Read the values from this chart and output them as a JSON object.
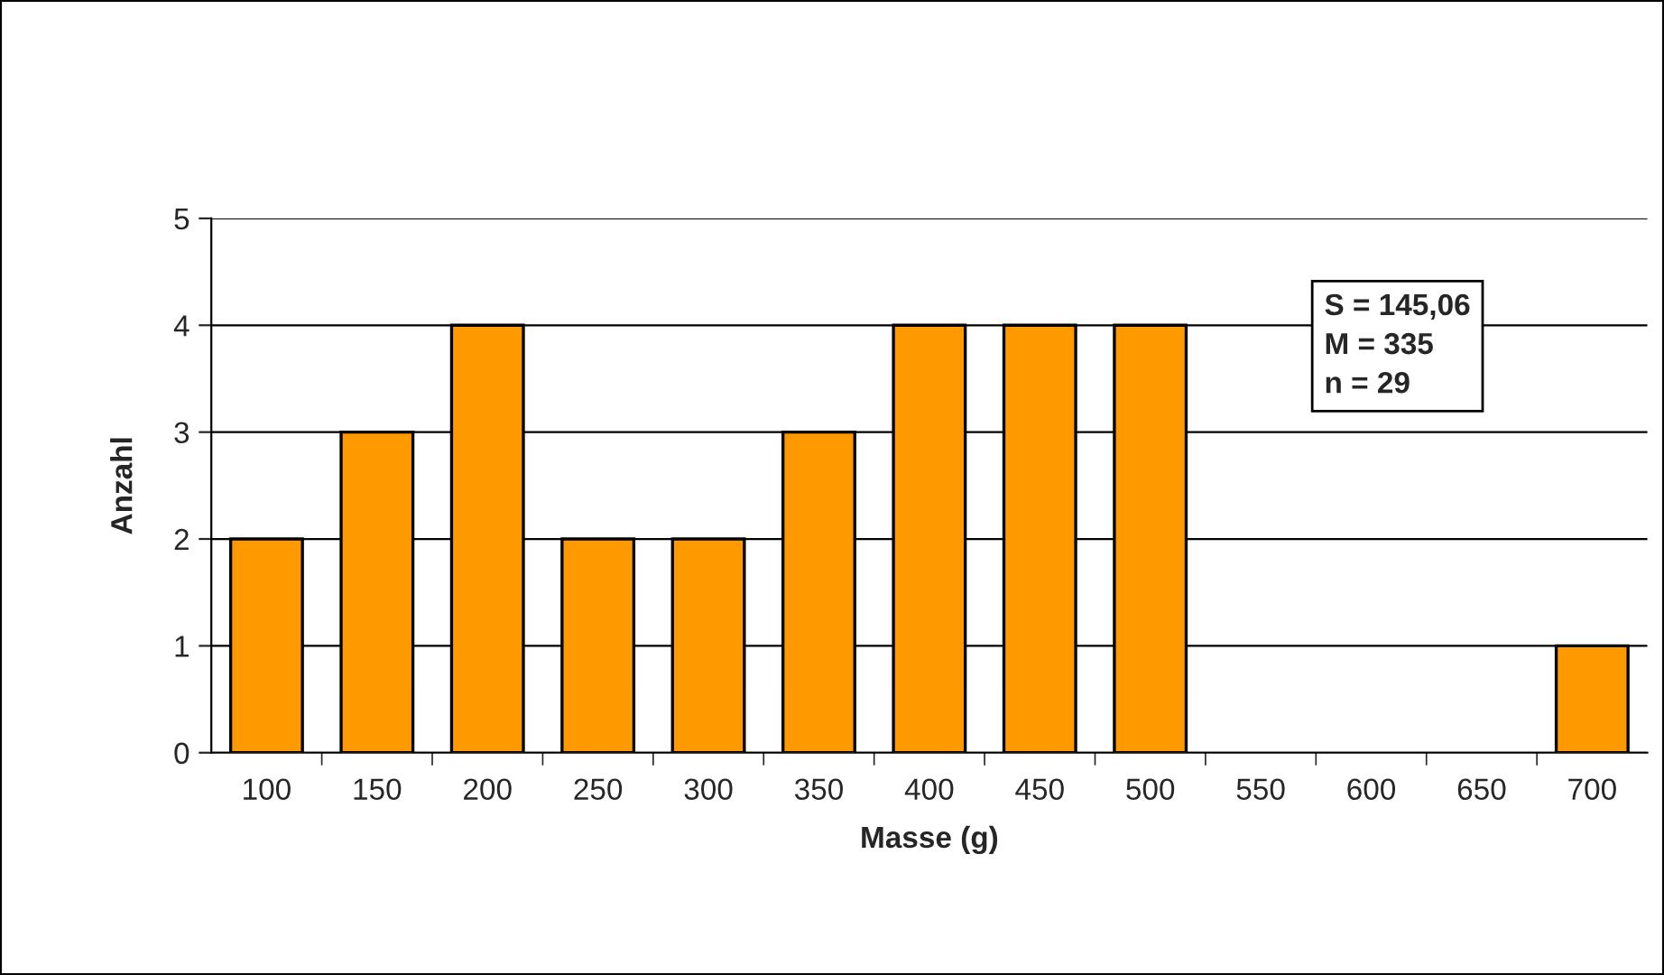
{
  "chart_data": {
    "type": "bar",
    "xlabel": "Masse (g)",
    "ylabel": "Anzahl",
    "categories": [
      "100",
      "150",
      "200",
      "250",
      "300",
      "350",
      "400",
      "450",
      "500",
      "550",
      "600",
      "650",
      "700"
    ],
    "values": [
      2,
      3,
      4,
      2,
      2,
      3,
      4,
      4,
      4,
      0,
      0,
      0,
      1
    ],
    "color": "#ff9900",
    "ylim": [
      0,
      5
    ],
    "yticks": [
      0,
      1,
      2,
      3,
      4,
      5
    ],
    "grid": "y",
    "legend": false,
    "annotations": [
      "S = 145,06\nM = 335\nn = 29"
    ]
  }
}
